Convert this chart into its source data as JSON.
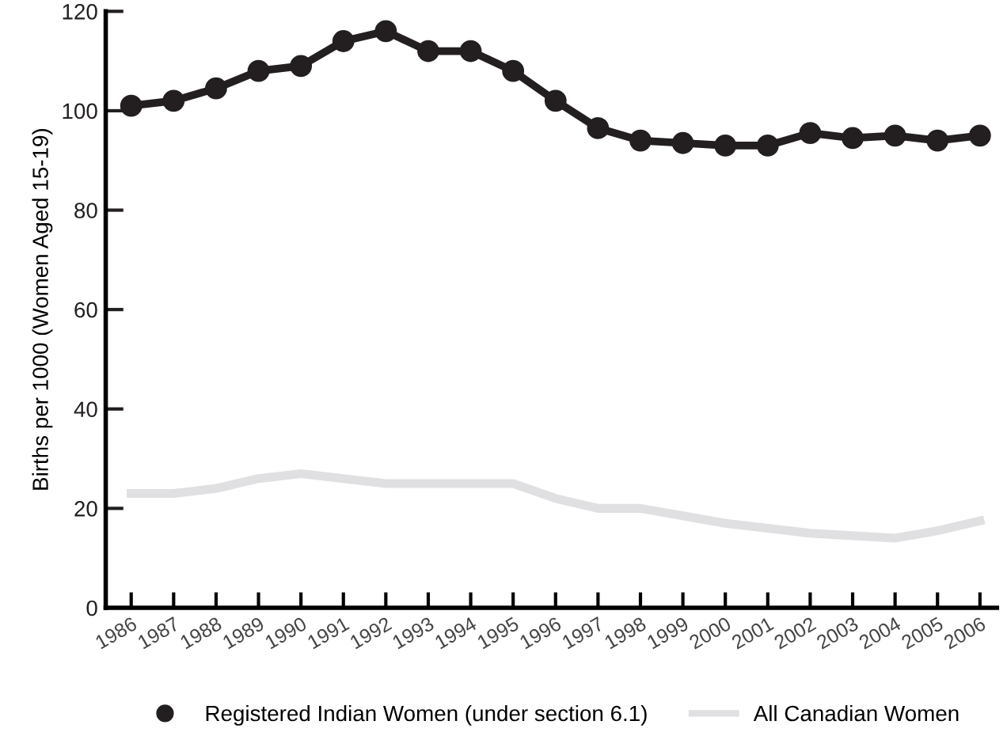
{
  "chart_data": {
    "type": "line",
    "ylabel": "Births per 1000 (Women Aged 15-19)",
    "categories": [
      "1986",
      "1987",
      "1988",
      "1989",
      "1990",
      "1991",
      "1992",
      "1993",
      "1994",
      "1995",
      "1996",
      "1997",
      "1998",
      "1999",
      "2000",
      "2001",
      "2002",
      "2003",
      "2004",
      "2005",
      "2006"
    ],
    "series": [
      {
        "name": "Registered Indian Women (under section 6.1)",
        "color": "#231f20",
        "marker": "circle",
        "values": [
          101,
          102,
          104.5,
          108,
          109,
          114,
          116,
          112,
          112,
          108,
          102,
          96.5,
          94,
          93.5,
          93,
          93,
          95.5,
          94.5,
          95,
          94,
          95
        ]
      },
      {
        "name": "All Canadian Women",
        "color": "#e0e0e2",
        "marker": "none",
        "values": [
          23,
          23,
          24,
          26,
          27,
          26,
          25,
          25,
          25,
          25,
          22,
          20,
          20,
          18.5,
          17,
          16,
          15,
          14.5,
          14,
          15.5,
          17.5
        ]
      }
    ],
    "ylim": [
      0,
      120
    ],
    "yticks": [
      0,
      20,
      40,
      60,
      80,
      100,
      120
    ],
    "grid": false,
    "legend": "bottom"
  }
}
